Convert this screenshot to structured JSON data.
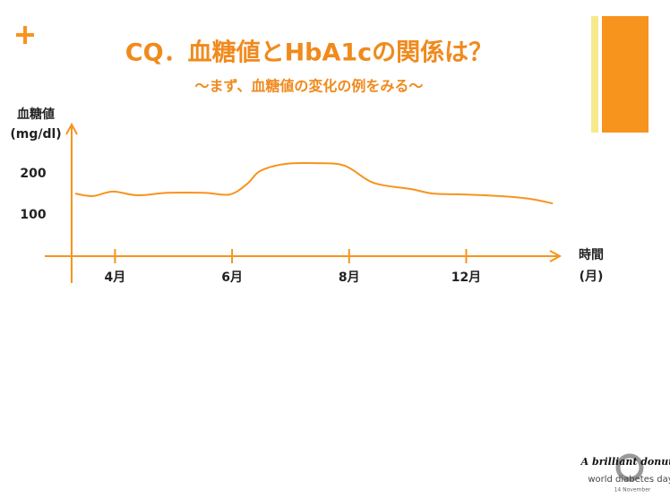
{
  "chart_data": {
    "type": "line",
    "title": "CQ．血糖値とHbA1cの関係は？",
    "subtitle": "〜まず、血糖値の変化の例をみる〜",
    "ylabel": "血糖値",
    "yunit": "(mg/dl)",
    "xlabel": "時間",
    "xunit": "(月)",
    "x": [
      0.66,
      0.81,
      0.98,
      1.19,
      1.45,
      1.76,
      1.98,
      2.13,
      2.24,
      2.45,
      2.7,
      2.96,
      3.21,
      3.53,
      3.72,
      3.98,
      4.29,
      4.55,
      4.74
    ],
    "values": [
      152,
      146,
      157,
      148,
      154,
      154,
      150,
      176,
      207,
      224,
      226,
      220,
      178,
      163,
      152,
      150,
      146,
      139,
      128
    ],
    "color": "#f7941d",
    "xlim": [
      0.4,
      4.8
    ],
    "xticks": [
      {
        "value": 1,
        "label": "4月"
      },
      {
        "value": 2,
        "label": "6月"
      },
      {
        "value": 3,
        "label": "8月"
      },
      {
        "value": 4,
        "label": "12月"
      }
    ],
    "ylim": [
      0,
      320
    ],
    "yticks": [
      100,
      200
    ]
  },
  "logo": {
    "tagline": "A brilliant donut",
    "name": "world diabetes day",
    "date": "14 November"
  }
}
